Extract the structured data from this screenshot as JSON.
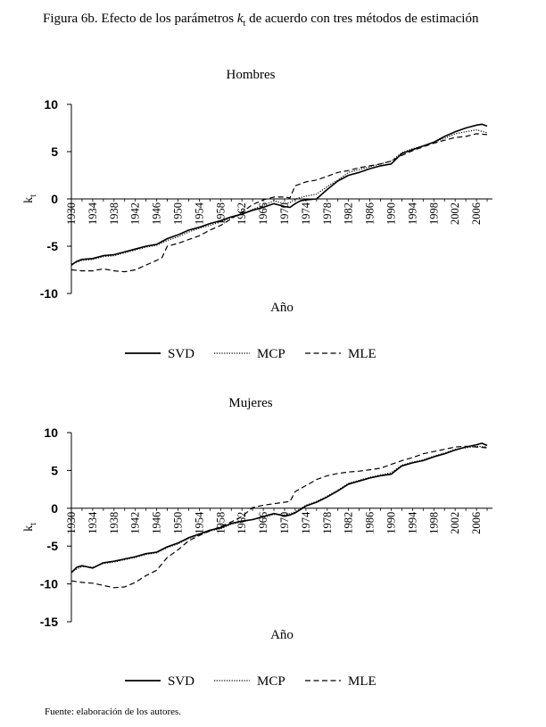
{
  "figure": {
    "title_pre": "Figura 6b. Efecto de los parámetros ",
    "title_k": "k",
    "title_sub": "t",
    "title_post": " de acuerdo con tres métodos de estimación",
    "source": "Fuente: elaboración de los autores."
  },
  "chart_data": [
    {
      "type": "line",
      "title": "Hombres",
      "xlabel": "Año",
      "ylabel": "k",
      "ylabel_sub": "t",
      "ylim": [
        -10,
        10
      ],
      "yticks": [
        10,
        5,
        0,
        -5,
        -10
      ],
      "xlim": [
        1930,
        2009
      ],
      "xticks": [
        "1930",
        "1934",
        "1938",
        "1942",
        "1946",
        "1950",
        "1954",
        "1958",
        "1962",
        "1966",
        "1970",
        "1974",
        "1978",
        "1982",
        "1986",
        "1990",
        "1994",
        "1998",
        "2002",
        "2006"
      ],
      "series": [
        {
          "name": "SVD",
          "style": "solid",
          "x": [
            1930,
            1931,
            1932,
            1934,
            1936,
            1938,
            1940,
            1942,
            1944,
            1946,
            1948,
            1950,
            1952,
            1954,
            1956,
            1958,
            1960,
            1962,
            1964,
            1966,
            1968,
            1970,
            1971,
            1972,
            1973,
            1974,
            1976,
            1978,
            1980,
            1982,
            1984,
            1986,
            1988,
            1990,
            1992,
            1994,
            1996,
            1998,
            2000,
            2002,
            2004,
            2006,
            2007,
            2008
          ],
          "values": [
            -7.0,
            -6.6,
            -6.4,
            -6.3,
            -6.0,
            -5.9,
            -5.6,
            -5.3,
            -5.0,
            -4.8,
            -4.2,
            -3.8,
            -3.3,
            -3.0,
            -2.6,
            -2.3,
            -1.9,
            -1.6,
            -1.2,
            -0.9,
            -0.5,
            -0.8,
            -0.9,
            -0.5,
            -0.2,
            -0.1,
            0.0,
            1.0,
            1.9,
            2.5,
            2.8,
            3.2,
            3.5,
            3.7,
            4.8,
            5.2,
            5.6,
            6.0,
            6.6,
            7.1,
            7.5,
            7.8,
            7.9,
            7.7
          ]
        },
        {
          "name": "MCP",
          "style": "dotted",
          "x": [
            1930,
            1932,
            1934,
            1936,
            1938,
            1940,
            1942,
            1944,
            1946,
            1948,
            1950,
            1952,
            1954,
            1956,
            1958,
            1960,
            1962,
            1964,
            1966,
            1968,
            1970,
            1971,
            1972,
            1974,
            1976,
            1978,
            1980,
            1982,
            1984,
            1986,
            1988,
            1990,
            1992,
            1994,
            1996,
            1998,
            2000,
            2002,
            2004,
            2006,
            2008
          ],
          "values": [
            -6.9,
            -6.5,
            -6.4,
            -6.1,
            -6.0,
            -5.7,
            -5.4,
            -5.1,
            -4.9,
            -4.4,
            -4.0,
            -3.5,
            -3.1,
            -2.8,
            -2.4,
            -2.0,
            -1.6,
            -1.1,
            -0.7,
            -0.2,
            -0.5,
            -0.4,
            0.0,
            0.3,
            0.5,
            1.3,
            2.0,
            2.8,
            3.1,
            3.4,
            3.7,
            4.0,
            4.9,
            5.3,
            5.6,
            6.0,
            6.4,
            6.9,
            7.1,
            7.3,
            7.0
          ]
        },
        {
          "name": "MLE",
          "style": "dashed",
          "x": [
            1930,
            1932,
            1934,
            1936,
            1938,
            1940,
            1942,
            1944,
            1946,
            1947,
            1948,
            1950,
            1952,
            1954,
            1956,
            1958,
            1960,
            1962,
            1964,
            1966,
            1968,
            1970,
            1971,
            1972,
            1974,
            1976,
            1978,
            1980,
            1982,
            1984,
            1986,
            1988,
            1990,
            1992,
            1994,
            1996,
            1998,
            2000,
            2002,
            2004,
            2006,
            2008
          ],
          "values": [
            -7.5,
            -7.6,
            -7.6,
            -7.4,
            -7.6,
            -7.7,
            -7.5,
            -7.0,
            -6.5,
            -6.2,
            -5.0,
            -4.7,
            -4.3,
            -3.9,
            -3.3,
            -2.8,
            -2.1,
            -1.4,
            -0.6,
            -0.1,
            0.2,
            0.2,
            0.1,
            1.4,
            1.8,
            2.0,
            2.4,
            2.8,
            3.0,
            3.3,
            3.5,
            3.7,
            4.0,
            4.6,
            5.1,
            5.5,
            5.9,
            6.2,
            6.5,
            6.6,
            6.9,
            6.8
          ]
        }
      ]
    },
    {
      "type": "line",
      "title": "Mujeres",
      "xlabel": "Año",
      "ylabel": "k",
      "ylabel_sub": "t",
      "ylim": [
        -15,
        10
      ],
      "yticks": [
        10,
        5,
        0,
        -5,
        -10,
        -15
      ],
      "xlim": [
        1930,
        2009
      ],
      "xticks": [
        "1930",
        "1934",
        "1938",
        "1942",
        "1946",
        "1950",
        "1954",
        "1958",
        "1962",
        "1966",
        "1970",
        "1974",
        "1978",
        "1982",
        "1986",
        "1990",
        "1994",
        "1998",
        "2002",
        "2006"
      ],
      "series": [
        {
          "name": "SVD",
          "style": "solid",
          "x": [
            1930,
            1931,
            1932,
            1934,
            1936,
            1938,
            1940,
            1942,
            1944,
            1946,
            1948,
            1950,
            1952,
            1954,
            1956,
            1958,
            1960,
            1962,
            1964,
            1966,
            1968,
            1970,
            1971,
            1972,
            1974,
            1976,
            1978,
            1980,
            1982,
            1984,
            1986,
            1988,
            1990,
            1992,
            1994,
            1996,
            1998,
            2000,
            2002,
            2004,
            2006,
            2007,
            2008
          ],
          "values": [
            -8.5,
            -7.8,
            -7.6,
            -7.9,
            -7.2,
            -7.0,
            -6.7,
            -6.4,
            -6.0,
            -5.8,
            -5.1,
            -4.6,
            -3.9,
            -3.4,
            -2.9,
            -2.6,
            -2.0,
            -1.7,
            -1.5,
            -1.1,
            -0.7,
            -1.0,
            -0.9,
            -0.6,
            0.3,
            0.8,
            1.5,
            2.3,
            3.2,
            3.6,
            4.0,
            4.3,
            4.5,
            5.6,
            6.0,
            6.3,
            6.8,
            7.2,
            7.7,
            8.1,
            8.4,
            8.6,
            8.3
          ]
        },
        {
          "name": "MCP",
          "style": "dotted",
          "x": [
            1930,
            1932,
            1934,
            1936,
            1938,
            1940,
            1942,
            1944,
            1946,
            1948,
            1950,
            1952,
            1954,
            1956,
            1958,
            1960,
            1962,
            1964,
            1966,
            1968,
            1970,
            1972,
            1974,
            1976,
            1978,
            1980,
            1982,
            1984,
            1986,
            1988,
            1990,
            1992,
            1994,
            1996,
            1998,
            2000,
            2002,
            2004,
            2006,
            2008
          ],
          "values": [
            -8.4,
            -7.7,
            -7.8,
            -7.3,
            -7.1,
            -6.8,
            -6.5,
            -6.1,
            -5.9,
            -5.2,
            -4.7,
            -4.0,
            -3.5,
            -3.0,
            -2.7,
            -2.1,
            -1.8,
            -1.5,
            -1.2,
            -0.8,
            -0.9,
            -0.5,
            0.4,
            0.9,
            1.6,
            2.4,
            3.3,
            3.7,
            4.1,
            4.4,
            4.7,
            5.7,
            6.1,
            6.4,
            6.9,
            7.3,
            7.8,
            8.0,
            8.2,
            8.1
          ]
        },
        {
          "name": "MLE",
          "style": "dashed",
          "x": [
            1930,
            1932,
            1934,
            1936,
            1938,
            1940,
            1942,
            1944,
            1946,
            1948,
            1950,
            1952,
            1954,
            1956,
            1958,
            1960,
            1962,
            1964,
            1966,
            1968,
            1970,
            1971,
            1972,
            1974,
            1976,
            1978,
            1980,
            1982,
            1984,
            1986,
            1988,
            1990,
            1992,
            1994,
            1996,
            1998,
            2000,
            2002,
            2004,
            2006,
            2008
          ],
          "values": [
            -9.6,
            -9.8,
            -9.9,
            -10.2,
            -10.5,
            -10.4,
            -9.8,
            -8.9,
            -8.2,
            -6.5,
            -5.5,
            -4.3,
            -3.6,
            -3.0,
            -2.4,
            -1.8,
            -1.1,
            0.1,
            0.4,
            0.6,
            0.8,
            0.9,
            2.2,
            3.0,
            3.8,
            4.3,
            4.6,
            4.8,
            4.9,
            5.1,
            5.3,
            5.8,
            6.3,
            6.7,
            7.2,
            7.5,
            7.8,
            8.1,
            8.2,
            8.1,
            8.0
          ]
        }
      ]
    }
  ]
}
